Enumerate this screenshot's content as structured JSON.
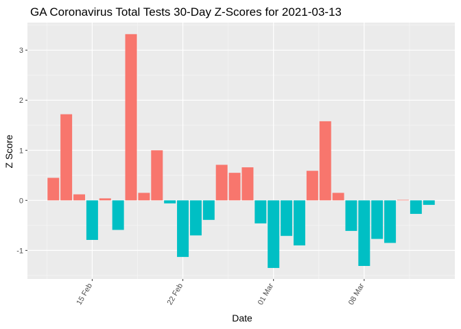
{
  "chart_data": {
    "type": "bar",
    "title": "GA Coronavirus Total Tests 30-Day Z-Scores for 2021-03-13",
    "xlabel": "Date",
    "ylabel": "Z Score",
    "x": [
      "2021-02-12",
      "2021-02-13",
      "2021-02-14",
      "2021-02-15",
      "2021-02-16",
      "2021-02-17",
      "2021-02-18",
      "2021-02-19",
      "2021-02-20",
      "2021-02-21",
      "2021-02-22",
      "2021-02-23",
      "2021-02-24",
      "2021-02-25",
      "2021-02-26",
      "2021-02-27",
      "2021-02-28",
      "2021-03-01",
      "2021-03-02",
      "2021-03-03",
      "2021-03-04",
      "2021-03-05",
      "2021-03-06",
      "2021-03-07",
      "2021-03-08",
      "2021-03-09",
      "2021-03-10",
      "2021-03-11",
      "2021-03-12",
      "2021-03-13"
    ],
    "values": [
      0.45,
      1.72,
      0.12,
      -0.79,
      0.04,
      -0.59,
      3.32,
      0.15,
      1.0,
      -0.06,
      -1.13,
      -0.7,
      -0.39,
      0.71,
      0.55,
      0.66,
      -0.46,
      -1.35,
      -0.71,
      -0.9,
      0.59,
      1.58,
      0.15,
      -0.61,
      -1.31,
      -0.77,
      -0.85,
      0.01,
      -0.27,
      -0.09
    ],
    "xticks": [
      {
        "date": "2021-02-15",
        "label": "15 Feb"
      },
      {
        "date": "2021-02-22",
        "label": "22 Feb"
      },
      {
        "date": "2021-03-01",
        "label": "01 Mar"
      },
      {
        "date": "2021-03-08",
        "label": "08 Mar"
      }
    ],
    "yticks": [
      -1,
      0,
      1,
      2,
      3
    ],
    "ylim": [
      -1.57,
      3.55
    ],
    "xlim": [
      "2021-02-10",
      "2021-03-15"
    ],
    "grid": true,
    "legend": "none",
    "colors": {
      "positive": "#F8766D",
      "negative": "#00BFC4",
      "panel": "#EBEBEB",
      "grid_major": "#FFFFFF",
      "grid_minor": "#F5F5F5",
      "tick_text": "#4D4D4D"
    }
  }
}
